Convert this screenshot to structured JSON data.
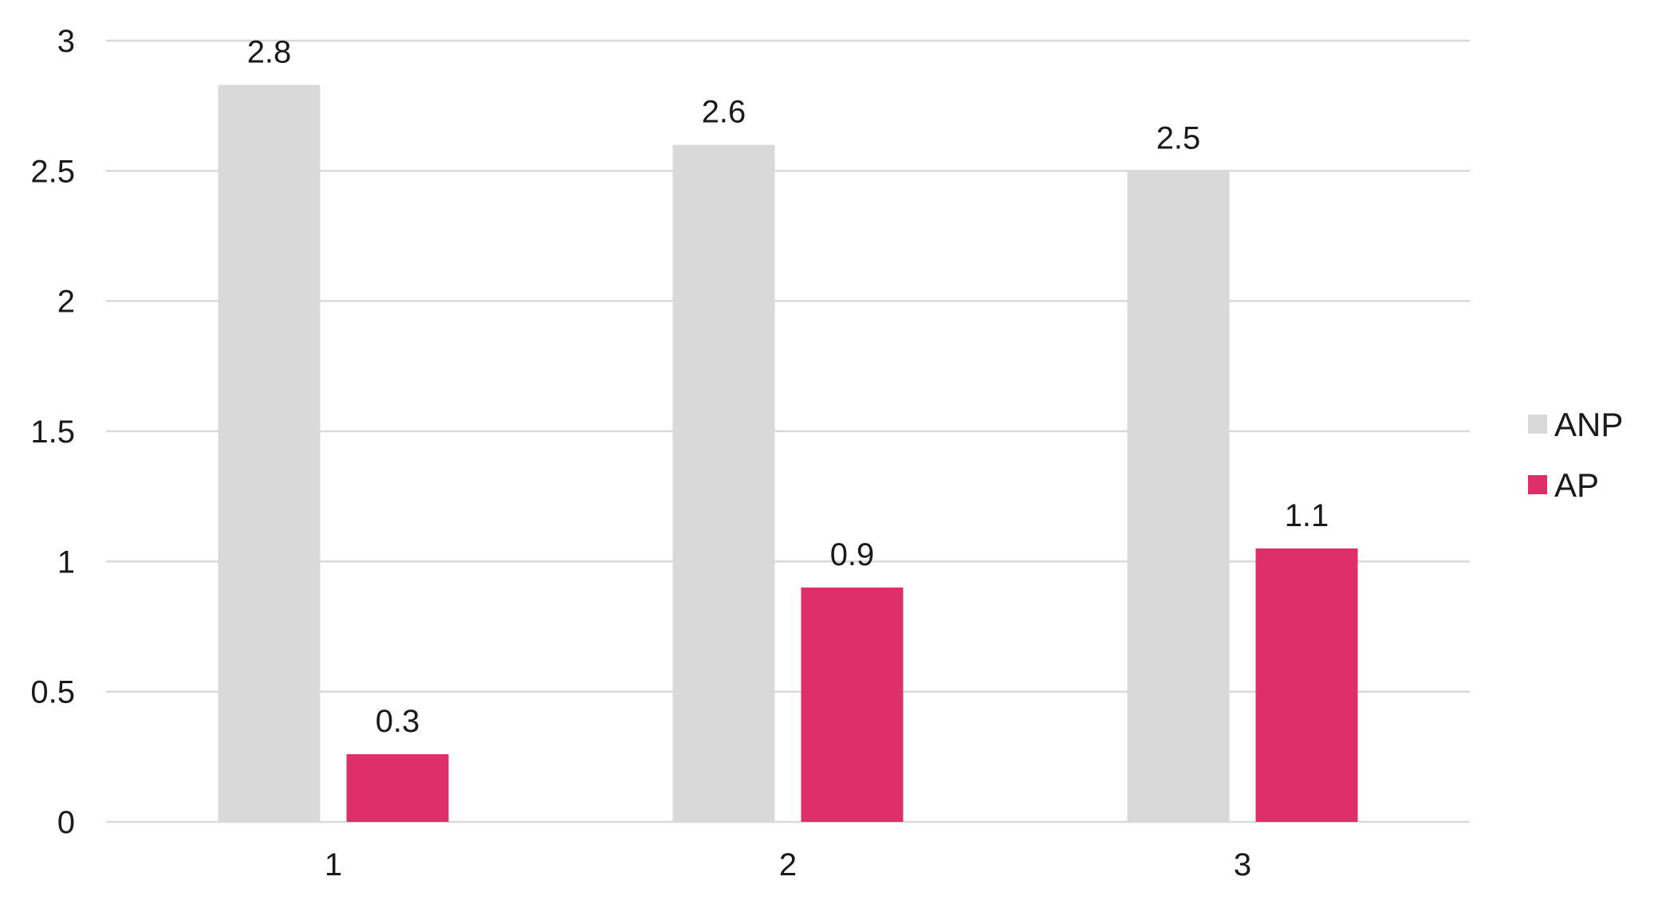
{
  "chart_data": {
    "type": "bar",
    "categories": [
      "1",
      "2",
      "3"
    ],
    "series": [
      {
        "name": "ANP",
        "values": [
          2.83,
          2.6,
          2.5
        ],
        "labels": [
          "2.8",
          "2.6",
          "2.5"
        ],
        "color": "#d9d9d9"
      },
      {
        "name": "AP",
        "values": [
          0.26,
          0.9,
          1.05
        ],
        "labels": [
          "0.3",
          "0.9",
          "1.1"
        ],
        "color": "#de2f6b"
      }
    ],
    "ylim": [
      0,
      3
    ],
    "yticks": [
      0,
      0.5,
      1,
      1.5,
      2,
      2.5,
      3
    ],
    "ytick_labels": [
      "0",
      "0.5",
      "1",
      "1.5",
      "2",
      "2.5",
      "3"
    ],
    "grid": true,
    "legend_position": "right",
    "title": "",
    "xlabel": "",
    "ylabel": "",
    "grid_color": "#d9d9d9"
  }
}
